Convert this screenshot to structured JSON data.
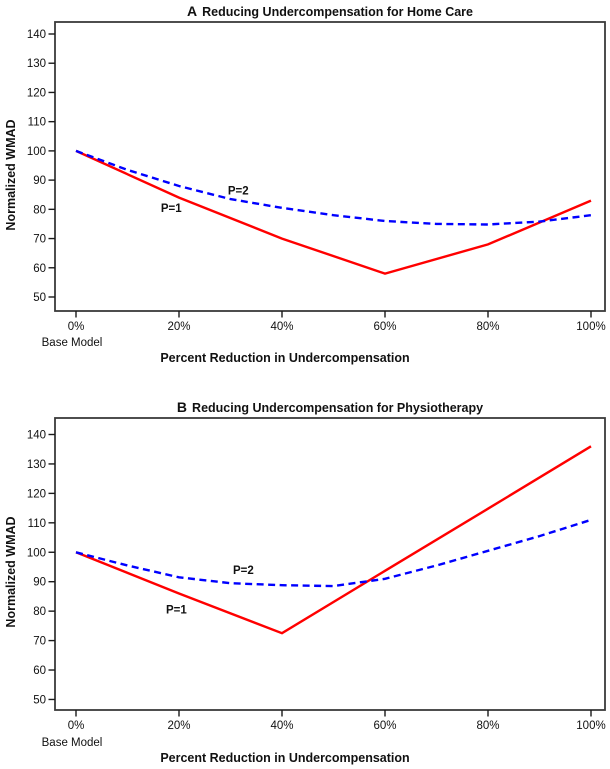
{
  "chart_data": [
    {
      "panel": "A",
      "type": "line",
      "title_prefix": "A",
      "title": "Reducing Undercompensation for Home Care",
      "xlabel": "Percent Reduction in Undercompensation",
      "ylabel": "Normalized WMAD",
      "x_axis_sub_label": "Base Model",
      "x_tick_values": [
        0,
        20,
        40,
        60,
        80,
        100
      ],
      "x_tick_labels": [
        "0%",
        "20%",
        "40%",
        "60%",
        "80%",
        "100%"
      ],
      "y_ticks": [
        50,
        60,
        70,
        80,
        90,
        100,
        110,
        120,
        130,
        140
      ],
      "ylim": [
        45,
        145
      ],
      "grid": false,
      "legend_position": "inline-labels",
      "series": [
        {
          "name": "P=1",
          "color": "#ff0000",
          "line_style": "solid",
          "x": [
            0,
            20,
            40,
            60,
            80,
            100
          ],
          "values": [
            100,
            84,
            70,
            58,
            68,
            83
          ],
          "label": {
            "text": "P=1",
            "x": 18.5,
            "y": 80.5
          }
        },
        {
          "name": "P=2",
          "color": "#0000ff",
          "line_style": "dashed",
          "x": [
            0,
            10,
            20,
            30,
            40,
            50,
            60,
            70,
            80,
            90,
            100
          ],
          "values": [
            100,
            93.5,
            88,
            83.5,
            80.5,
            78,
            76,
            75,
            74.8,
            75.8,
            78
          ],
          "label": {
            "text": "P=2",
            "x": 31.5,
            "y": 86.5
          }
        }
      ]
    },
    {
      "panel": "B",
      "type": "line",
      "title_prefix": "B",
      "title": "Reducing Undercompensation for Physiotherapy",
      "xlabel": "Percent Reduction in Undercompensation",
      "ylabel": "Normalized WMAD",
      "x_axis_sub_label": "Base Model",
      "x_tick_values": [
        0,
        20,
        40,
        60,
        80,
        100
      ],
      "x_tick_labels": [
        "0%",
        "20%",
        "40%",
        "60%",
        "80%",
        "100%"
      ],
      "y_ticks": [
        50,
        60,
        70,
        80,
        90,
        100,
        110,
        120,
        130,
        140
      ],
      "ylim": [
        45,
        145
      ],
      "grid": false,
      "legend_position": "inline-labels",
      "series": [
        {
          "name": "P=1",
          "color": "#ff0000",
          "line_style": "solid",
          "x": [
            0,
            20,
            40,
            60,
            80,
            100
          ],
          "values": [
            100,
            86,
            72.5,
            93.7,
            114.8,
            136
          ],
          "label": {
            "text": "P=1",
            "x": 19.5,
            "y": 80.5
          }
        },
        {
          "name": "P=2",
          "color": "#0000ff",
          "line_style": "dashed",
          "x": [
            0,
            10,
            20,
            30,
            40,
            50,
            60,
            70,
            80,
            90,
            100
          ],
          "values": [
            100,
            95.5,
            91.5,
            89.5,
            88.8,
            88.5,
            91,
            95.5,
            100.5,
            105.5,
            111
          ],
          "label": {
            "text": "P=2",
            "x": 32.5,
            "y": 94
          }
        }
      ]
    }
  ]
}
